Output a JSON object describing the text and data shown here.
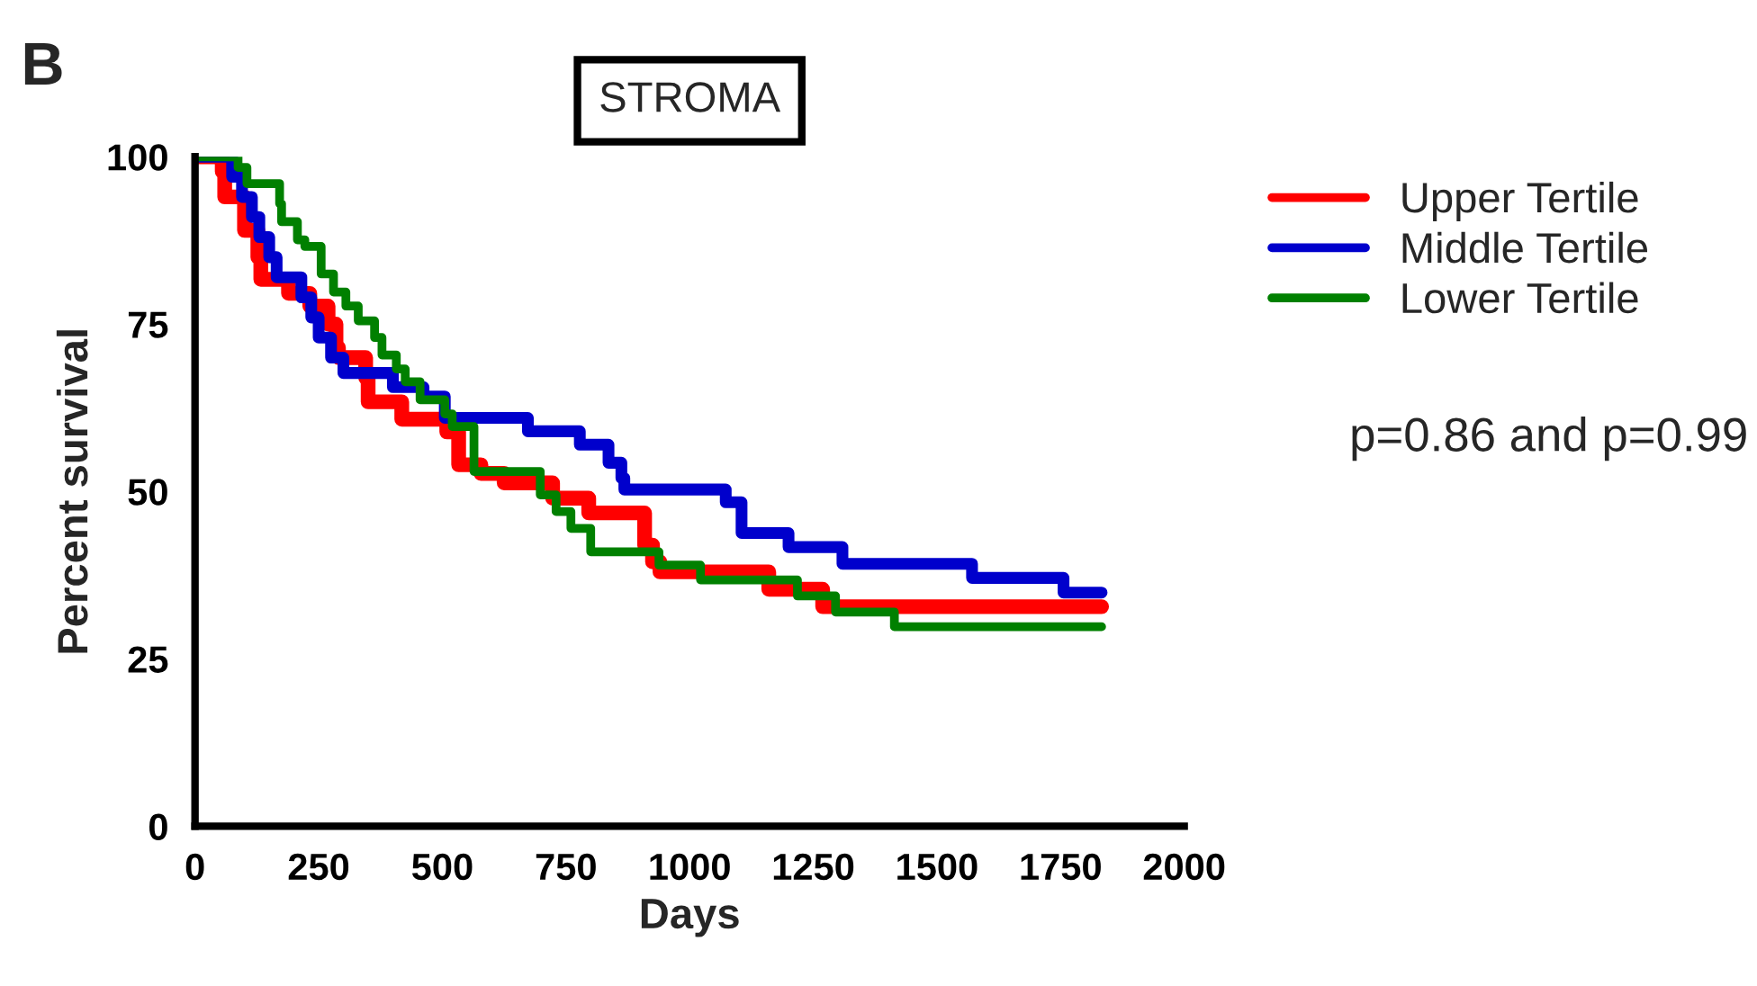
{
  "chart_data": {
    "type": "step",
    "title": "STROMA",
    "xlabel": "Days",
    "ylabel": "Percent survival",
    "annotations": [
      "B",
      "p=0.86 and p=0.99"
    ],
    "xlim": [
      0,
      2000
    ],
    "ylim": [
      0,
      100
    ],
    "xticks": [
      0,
      250,
      500,
      750,
      1000,
      1250,
      1500,
      1750,
      2000
    ],
    "yticks": [
      0,
      25,
      50,
      75,
      100
    ],
    "legend": "top right",
    "grid": false,
    "line_style": "solid",
    "series": [
      {
        "name": "Upper Tertile",
        "color": "#ff0000",
        "x": [
          0,
          55,
          60,
          100,
          127,
          133,
          189,
          232,
          269,
          285,
          290,
          345,
          350,
          418,
          509,
          533,
          578,
          625,
          723,
          796,
          909,
          925,
          940,
          1160,
          1269,
          1833
        ],
        "values": [
          100,
          97.8,
          94,
          89,
          85,
          81.7,
          79.6,
          77.7,
          75,
          71.5,
          70,
          67,
          63.4,
          60.8,
          58.9,
          54,
          52.7,
          51.3,
          49,
          46.8,
          42,
          39.5,
          38,
          35.4,
          32.8,
          32.8
        ]
      },
      {
        "name": "Middle Tertile",
        "color": "#0000cc",
        "x": [
          0,
          75,
          95,
          115,
          130,
          150,
          165,
          215,
          235,
          250,
          275,
          300,
          400,
          462,
          505,
          673,
          778,
          836,
          862,
          868,
          1073,
          1105,
          1200,
          1309,
          1571,
          1756,
          1833
        ],
        "values": [
          100,
          97,
          94,
          91,
          88,
          85,
          82,
          79,
          76,
          73,
          70,
          67.7,
          65.6,
          64.2,
          61,
          59,
          57,
          54.3,
          52,
          50.3,
          48.4,
          43.8,
          41.7,
          39.2,
          37.1,
          34.9,
          34.9
        ]
      },
      {
        "name": "Lower Tertile",
        "color": "#008000",
        "x": [
          0,
          87,
          105,
          171,
          175,
          207,
          222,
          255,
          280,
          305,
          330,
          363,
          378,
          407,
          425,
          455,
          505,
          520,
          564,
          698,
          730,
          760,
          800,
          938,
          1022,
          1218,
          1295,
          1414,
          1833
        ],
        "values": [
          100,
          98.4,
          96,
          93,
          90.3,
          87.6,
          86.6,
          82.5,
          79.8,
          77.7,
          75.5,
          73,
          70.4,
          68.3,
          66.4,
          63.7,
          61.6,
          59.7,
          53,
          49.5,
          47,
          44.5,
          41,
          39,
          36.8,
          34.4,
          32,
          29.8,
          29.8
        ]
      }
    ]
  }
}
